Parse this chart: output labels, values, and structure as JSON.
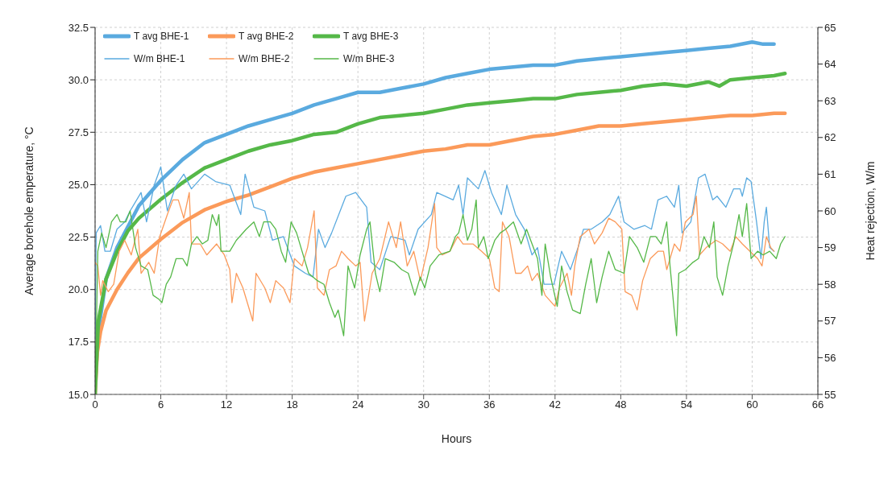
{
  "chart_data": {
    "type": "line",
    "xlabel": "Hours",
    "ylabel": "Average borehole emperature, °C",
    "y2label": "Heat rejection, W/m",
    "xlim": [
      0,
      66
    ],
    "xticks": [
      0,
      6,
      12,
      18,
      24,
      30,
      36,
      42,
      48,
      54,
      60,
      66
    ],
    "ylim": [
      15,
      32.5
    ],
    "yticks": [
      {
        "value": 15,
        "label": "15.0"
      },
      17.5,
      {
        "value": 20,
        "label": "20.0"
      },
      22.5,
      {
        "value": 25,
        "label": "25.0"
      },
      27.5,
      {
        "value": 30,
        "label": "30.0"
      },
      32.5
    ],
    "y2lim": [
      55,
      65
    ],
    "y2ticks": [
      55,
      56,
      57,
      58,
      59,
      60,
      61,
      62,
      63,
      64,
      65
    ],
    "grid": true,
    "legend": "top left",
    "marker": "none",
    "line_style": "solid",
    "series": [
      {
        "name": "T avg BHE-1",
        "color": "#5aaadf",
        "x": [
          0,
          0.3,
          1,
          2,
          3,
          4,
          5,
          6,
          8,
          10,
          12,
          14,
          16,
          18,
          20,
          22,
          24,
          26,
          28,
          30,
          32,
          34,
          36,
          38,
          40,
          42,
          44,
          46,
          48,
          50,
          52,
          54,
          56,
          58,
          60,
          61,
          62
        ],
        "values": [
          15.5,
          18,
          20.5,
          22,
          23,
          24,
          24.6,
          25.2,
          26.2,
          27,
          27.4,
          27.8,
          28.1,
          28.4,
          28.8,
          29.1,
          29.4,
          29.4,
          29.6,
          29.8,
          30.1,
          30.3,
          30.5,
          30.6,
          30.7,
          30.7,
          30.9,
          31,
          31.1,
          31.2,
          31.3,
          31.4,
          31.5,
          31.6,
          31.8,
          31.7,
          31.7
        ]
      },
      {
        "name": "T avg BHE-2",
        "color": "#fb9a5a",
        "x": [
          0,
          0.2,
          0.5,
          1,
          2,
          3,
          4,
          6,
          8,
          10,
          12,
          14,
          16,
          18,
          20,
          22,
          24,
          26,
          28,
          30,
          32,
          34,
          36,
          38,
          40,
          42,
          44,
          46,
          48,
          50,
          52,
          54,
          56,
          58,
          60,
          62,
          63
        ],
        "values": [
          15,
          17,
          18,
          19,
          20,
          20.8,
          21.5,
          22.4,
          23.2,
          23.8,
          24.2,
          24.5,
          24.9,
          25.3,
          25.6,
          25.8,
          26,
          26.2,
          26.4,
          26.6,
          26.7,
          26.9,
          26.9,
          27.1,
          27.3,
          27.4,
          27.6,
          27.8,
          27.8,
          27.9,
          28,
          28.1,
          28.2,
          28.3,
          28.3,
          28.4,
          28.4
        ]
      },
      {
        "name": "T avg BHE-3",
        "color": "#55b848",
        "x": [
          0,
          0.3,
          1,
          2,
          3,
          4,
          6,
          8,
          10,
          12,
          14,
          16,
          18,
          20,
          22,
          24,
          26,
          28,
          30,
          32,
          34,
          36,
          38,
          40,
          42,
          44,
          46,
          48,
          50,
          52,
          54,
          56,
          57,
          58,
          60,
          62,
          63
        ],
        "values": [
          15,
          18.5,
          20.5,
          21.8,
          22.8,
          23.4,
          24.3,
          25.1,
          25.8,
          26.2,
          26.6,
          26.9,
          27.1,
          27.4,
          27.5,
          27.9,
          28.2,
          28.3,
          28.4,
          28.6,
          28.8,
          28.9,
          29,
          29.1,
          29.1,
          29.3,
          29.4,
          29.5,
          29.7,
          29.8,
          29.7,
          29.9,
          29.7,
          30,
          30.1,
          30.2,
          30.3
        ]
      },
      {
        "name": "W/m BHE-1",
        "color": "#5aaadf",
        "axis": "y2",
        "x": [
          0,
          0.1,
          0.5,
          0.9,
          1.4,
          2,
          2.7,
          3.2,
          4.2,
          4.7,
          5.4,
          6,
          6.6,
          7.4,
          8.1,
          8.8,
          10,
          11,
          12.3,
          13.3,
          13.7,
          14.5,
          15.5,
          16.2,
          17.2,
          18.2,
          19.2,
          19.9,
          20.4,
          21,
          21.6,
          22.9,
          23.8,
          24.8,
          25.2,
          26,
          27,
          28.3,
          28.7,
          29.5,
          30.7,
          31.2,
          32.7,
          33.2,
          33.6,
          34,
          35,
          35.6,
          36.2,
          37.1,
          37.6,
          38.4,
          39.2,
          39.9,
          40.4,
          41,
          41.9,
          42.6,
          43.4,
          44.1,
          44.6,
          45.3,
          46.3,
          47,
          47.8,
          48.3,
          49.2,
          50.2,
          50.8,
          51.4,
          52.2,
          52.9,
          53.3,
          53.6,
          54.4,
          55.1,
          55.7,
          56.4,
          56.8,
          57.6,
          58.3,
          58.9,
          59.1,
          59.5,
          59.9,
          60.4,
          60.8,
          61.1,
          61.3,
          61.6,
          62
        ],
        "values": [
          56.5,
          59.4,
          59.6,
          58.9,
          58.9,
          59.5,
          59.7,
          60,
          60.5,
          59.7,
          60.7,
          61.2,
          60,
          60.7,
          61,
          60.6,
          61,
          60.8,
          60.7,
          59.9,
          61,
          60.1,
          60,
          59.2,
          59.3,
          58.5,
          58.3,
          58.2,
          59.5,
          59,
          59.4,
          60.4,
          60.5,
          60.1,
          58.6,
          58.4,
          59.3,
          59.2,
          58.8,
          59.5,
          59.9,
          60.5,
          60.3,
          60.7,
          59.9,
          60.9,
          60.6,
          61.1,
          60.5,
          59.9,
          60.7,
          59.9,
          59.5,
          58.8,
          59,
          58,
          58,
          58.9,
          58.4,
          59,
          59.5,
          59.5,
          59.7,
          59.9,
          60.4,
          59.7,
          59.5,
          59.6,
          59.5,
          60.3,
          60.4,
          60.1,
          60.7,
          59.4,
          59.7,
          60.9,
          61,
          60.3,
          60.4,
          60.1,
          60.6,
          60.6,
          60.4,
          60.9,
          60.8,
          59.7,
          58.7,
          59.7,
          60.1,
          59,
          58.9
        ]
      },
      {
        "name": "W/m BHE-2",
        "color": "#fb9a5a",
        "axis": "y2",
        "x": [
          0,
          0.25,
          0.5,
          0.7,
          1.2,
          1.7,
          2.2,
          2.7,
          3.3,
          3.9,
          4.2,
          4.9,
          5.4,
          5.9,
          6.6,
          7.1,
          7.6,
          8.1,
          8.6,
          8.8,
          9.6,
          10.2,
          11.1,
          11.8,
          12.3,
          12.5,
          12.9,
          13.5,
          14,
          14.4,
          14.7,
          15.5,
          16,
          16.5,
          17.2,
          17.8,
          18.2,
          18.9,
          19.4,
          20,
          20.3,
          20.9,
          21.4,
          22,
          22.5,
          23.1,
          23.8,
          24.2,
          24.6,
          25.3,
          26,
          26.8,
          27.5,
          27.9,
          28.5,
          29.1,
          29.7,
          30.4,
          31,
          31.2,
          31.7,
          32.4,
          33.1,
          33.6,
          34.5,
          35.3,
          36,
          36.5,
          36.9,
          37.2,
          37.8,
          38.4,
          38.9,
          39.5,
          39.9,
          40.4,
          41.1,
          42,
          42.4,
          43.1,
          43.5,
          43.8,
          44.3,
          45.1,
          45.6,
          46.3,
          46.9,
          47.5,
          48.1,
          48.4,
          49,
          49.5,
          50,
          50.7,
          51.4,
          51.9,
          52.2,
          52.9,
          53.4,
          53.9,
          54.6,
          54.9,
          55.2,
          55.8,
          56.7,
          57.3,
          58,
          58.5,
          59.1,
          59.8,
          60.5,
          60.9,
          61.3,
          61.7,
          62
        ],
        "values": [
          58.6,
          58.5,
          57.7,
          58.1,
          57.8,
          58,
          58.9,
          59.2,
          58.8,
          59.5,
          58.3,
          58.6,
          58.3,
          59.3,
          59.9,
          60.3,
          60.3,
          59.8,
          60.5,
          59.1,
          59.1,
          58.8,
          59.1,
          58.8,
          58.4,
          57.5,
          58.3,
          57.9,
          57.4,
          57,
          58.3,
          57.9,
          57.5,
          58.1,
          57.9,
          57.5,
          58.7,
          58.5,
          59,
          60,
          57.9,
          57.7,
          58.4,
          58.5,
          58.9,
          58.7,
          58.5,
          58.6,
          57,
          58.3,
          58.7,
          59.7,
          59,
          59.7,
          58.5,
          58.9,
          58.1,
          59,
          60.2,
          59,
          58.8,
          58.9,
          59.3,
          59.1,
          59.1,
          58.9,
          58.7,
          57.9,
          57.8,
          59.7,
          59.3,
          58.3,
          58.3,
          58.5,
          58.1,
          58.3,
          57.7,
          57.4,
          57.9,
          58.3,
          57.7,
          58.5,
          59.3,
          59.5,
          59.1,
          59.4,
          59.8,
          59.7,
          59.5,
          57.8,
          57.7,
          57.3,
          58.1,
          58.7,
          58.9,
          58.9,
          58.4,
          59.1,
          58.9,
          59.7,
          59.9,
          60.4,
          58.8,
          59,
          59.2,
          59.1,
          58.9,
          59.3,
          59.1,
          58.9,
          58.7,
          58.5,
          59.3,
          59,
          58.9
        ]
      },
      {
        "name": "W/m BHE-3",
        "color": "#55b848",
        "axis": "y2",
        "x": [
          0,
          0.25,
          0.6,
          1,
          1.5,
          2,
          2.3,
          2.8,
          3.2,
          3.7,
          4.2,
          4.8,
          5.3,
          5.8,
          6.1,
          6.5,
          6.9,
          7.4,
          8,
          8.4,
          8.8,
          9.3,
          9.8,
          10.3,
          10.7,
          11.1,
          11.3,
          11.5,
          12.3,
          12.9,
          13.8,
          14.5,
          15,
          15.4,
          16,
          16.5,
          17,
          17.4,
          17.9,
          18.4,
          18.9,
          19.5,
          20.3,
          20.9,
          21.4,
          21.9,
          22.2,
          22.7,
          23.1,
          23.7,
          24.2,
          24.8,
          25.1,
          25.6,
          26,
          26.5,
          27.3,
          28,
          28.6,
          29.2,
          29.7,
          30.1,
          30.6,
          31.4,
          32.4,
          32.9,
          33.2,
          33.6,
          34,
          34.4,
          34.8,
          35,
          35.5,
          35.9,
          36.5,
          37,
          37.5,
          38.2,
          38.9,
          39.4,
          39.9,
          40.4,
          40.8,
          41.1,
          41.6,
          42.2,
          42.6,
          43.1,
          43.6,
          44.3,
          44.8,
          45.3,
          45.8,
          46.3,
          46.9,
          47.5,
          48.3,
          48.8,
          49.5,
          50.1,
          50.7,
          51.2,
          51.7,
          52.2,
          52.5,
          53.1,
          53.3,
          53.9,
          54.6,
          55.1,
          55.6,
          56.1,
          56.5,
          56.8,
          57.3,
          57.8,
          58.3,
          58.8,
          59.1,
          59.5,
          59.9,
          60.5,
          61,
          61.6,
          62.2,
          62.6,
          63
        ],
        "values": [
          55,
          58.9,
          59.4,
          59,
          59.7,
          59.9,
          59.7,
          59.7,
          60,
          59,
          58.5,
          58.4,
          57.7,
          57.6,
          57.5,
          58,
          58.2,
          58.7,
          58.7,
          58.5,
          59.1,
          59.3,
          59.1,
          59.2,
          59.9,
          59.6,
          59.9,
          58.9,
          58.9,
          59.2,
          59.5,
          59.7,
          59.3,
          59.7,
          59.7,
          59.5,
          58.9,
          58.6,
          59.7,
          59.4,
          58.9,
          58.3,
          58.1,
          58,
          57.5,
          57.1,
          57.3,
          56.6,
          58.5,
          57.9,
          58.8,
          59.5,
          59.7,
          58.3,
          57.8,
          58.7,
          58.6,
          58.4,
          58.3,
          57.7,
          58.2,
          57.9,
          58.5,
          58.8,
          58.9,
          59.3,
          59.4,
          59.9,
          59.2,
          59.5,
          60.3,
          59,
          59.3,
          58.7,
          59.2,
          59.4,
          59.5,
          59.7,
          59.1,
          59.5,
          59.1,
          58.7,
          57.7,
          59.1,
          58.2,
          57.4,
          58.5,
          57.8,
          57.3,
          57.2,
          58,
          58.7,
          57.5,
          58.2,
          58.9,
          58.4,
          58.3,
          59.3,
          59,
          58.6,
          59.3,
          59.3,
          59.1,
          59.7,
          58.5,
          56.6,
          58.3,
          58.4,
          58.6,
          58.7,
          59.3,
          59,
          59.7,
          58.2,
          57.7,
          58.5,
          59.1,
          59.9,
          59.3,
          60.2,
          58.7,
          58.9,
          58.8,
          58.9,
          58.7,
          59.1,
          59.3
        ]
      }
    ]
  }
}
